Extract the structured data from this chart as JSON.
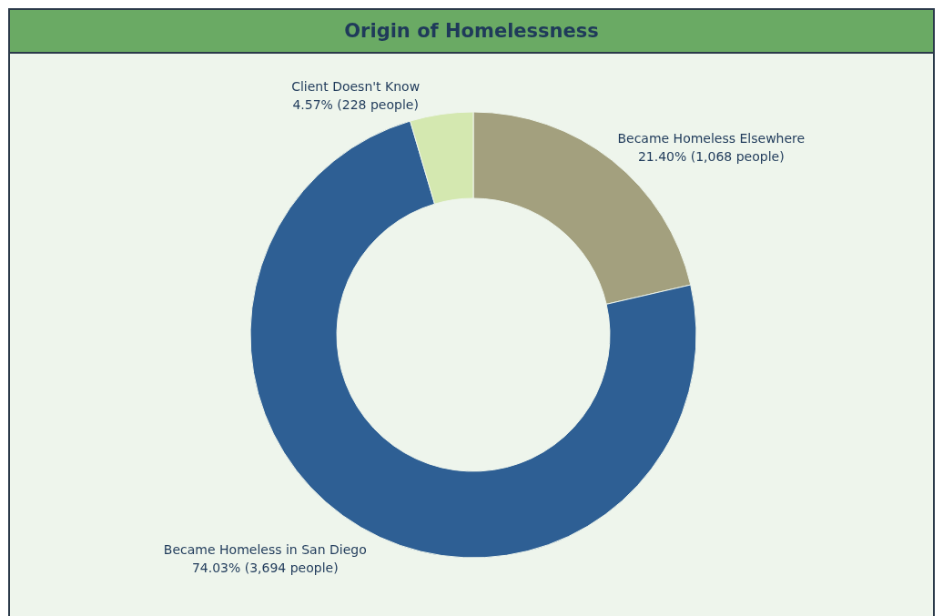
{
  "chart_data": {
    "type": "donut",
    "title": "Origin of Homelessness",
    "categories": [
      "Became Homeless Elsewhere",
      "Became Homeless in San Diego",
      "Client Doesn't Know"
    ],
    "values": [
      21.4,
      74.03,
      4.57
    ],
    "value_labels": [
      "21.40% (1,068 people)",
      "74.03% (3,694 people)",
      "4.57% (228 people)"
    ],
    "colors": [
      "#a3a07e",
      "#2e5f94",
      "#d4e8b0"
    ]
  }
}
